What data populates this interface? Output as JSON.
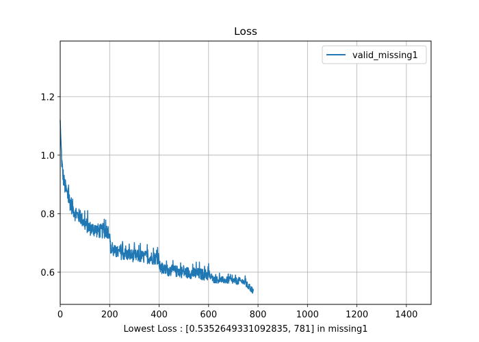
{
  "chart_data": {
    "type": "line",
    "title": "Loss",
    "xlabel": "Lowest Loss : [0.5352649331092835, 781] in missing1",
    "ylabel": "",
    "xlim": [
      0,
      1500
    ],
    "ylim": [
      0.49,
      1.39
    ],
    "xticks": [
      0,
      200,
      400,
      600,
      800,
      1000,
      1200,
      1400
    ],
    "yticks": [
      0.6,
      0.8,
      1.0,
      1.2
    ],
    "xtick_labels": [
      "0",
      "200",
      "400",
      "600",
      "800",
      "1000",
      "1200",
      "1400"
    ],
    "ytick_labels": [
      "0.6",
      "0.8",
      "1.0",
      "1.2"
    ],
    "grid": true,
    "legend_position": "top-right",
    "series": [
      {
        "name": "valid_missing1",
        "color": "#1f77b4",
        "trend": {
          "x": [
            0,
            3,
            6,
            10,
            15,
            20,
            30,
            40,
            50,
            60,
            80,
            100,
            120,
            140,
            160,
            180,
            198,
            205,
            230,
            260,
            300,
            340,
            380,
            398,
            405,
            450,
            500,
            550,
            600,
            620,
            680,
            740,
            781
          ],
          "y": [
            1.12,
            1.04,
            0.98,
            0.94,
            0.91,
            0.89,
            0.86,
            0.84,
            0.82,
            0.8,
            0.79,
            0.765,
            0.75,
            0.745,
            0.74,
            0.74,
            0.74,
            0.675,
            0.668,
            0.662,
            0.656,
            0.652,
            0.648,
            0.648,
            0.61,
            0.605,
            0.6,
            0.595,
            0.59,
            0.575,
            0.572,
            0.568,
            0.5353
          ]
        },
        "noise_amplitude": [
          {
            "x_from": 0,
            "x_to": 50,
            "amp": 0.03
          },
          {
            "x_from": 50,
            "x_to": 200,
            "amp": 0.025
          },
          {
            "x_from": 200,
            "x_to": 400,
            "amp": 0.022
          },
          {
            "x_from": 400,
            "x_to": 600,
            "amp": 0.02
          },
          {
            "x_from": 600,
            "x_to": 781,
            "amp": 0.012
          }
        ],
        "lowest": {
          "x": 781,
          "y": 0.5352649331092835
        }
      }
    ]
  }
}
